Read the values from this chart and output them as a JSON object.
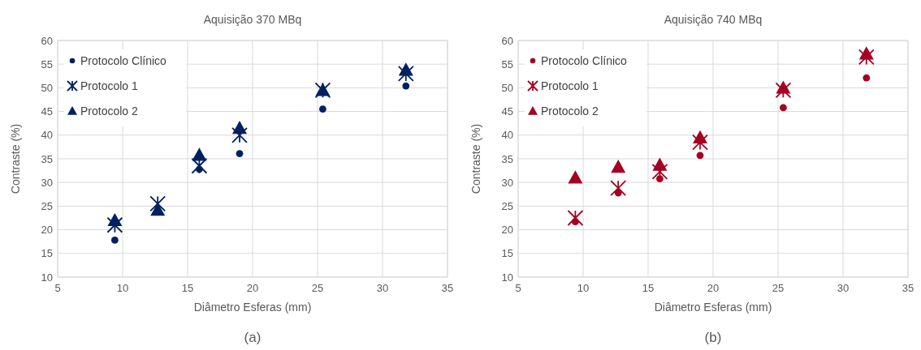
{
  "chart_data": [
    {
      "type": "scatter",
      "title": "Aquisição 370 MBq",
      "xlabel": "Diâmetro Esferas (mm)",
      "ylabel": "Contraste (%)",
      "annotations": [
        "(a)"
      ],
      "xlim": [
        5,
        35
      ],
      "xticks": [
        5,
        10,
        15,
        20,
        25,
        30,
        35
      ],
      "ylim": [
        10,
        60
      ],
      "yticks": [
        10,
        15,
        20,
        25,
        30,
        35,
        40,
        45,
        50,
        55,
        60
      ],
      "grid": true,
      "legend": "top left",
      "x": [
        9.4,
        12.7,
        15.9,
        19.0,
        25.4,
        31.8
      ],
      "series": [
        {
          "name": "Protocolo Clínico",
          "color": "#002060",
          "marker": "circle",
          "values": [
            17.8,
            null,
            32.8,
            36.1,
            45.5,
            50.4
          ]
        },
        {
          "name": "Protocolo 1",
          "color": "#002060",
          "marker": "cross",
          "values": [
            21.0,
            25.5,
            33.5,
            40.0,
            49.5,
            53.0
          ]
        },
        {
          "name": "Protocolo 2",
          "color": "#002060",
          "marker": "triangle",
          "values": [
            22.0,
            24.2,
            35.8,
            41.5,
            49.5,
            53.8
          ]
        }
      ]
    },
    {
      "type": "scatter",
      "title": "Aquisição 740 MBq",
      "xlabel": "Diâmetro Esferas (mm)",
      "ylabel": "Contraste (%)",
      "annotations": [
        "(b)"
      ],
      "xlim": [
        5,
        35
      ],
      "xticks": [
        5,
        10,
        15,
        20,
        25,
        30,
        35
      ],
      "ylim": [
        10,
        60
      ],
      "yticks": [
        10,
        15,
        20,
        25,
        30,
        35,
        40,
        45,
        50,
        55,
        60
      ],
      "grid": true,
      "legend": "top left",
      "x": [
        9.4,
        12.7,
        15.9,
        19.0,
        25.4,
        31.8
      ],
      "series": [
        {
          "name": "Protocolo Clínico",
          "color": "#a50021",
          "marker": "circle",
          "values": [
            21.7,
            27.8,
            30.8,
            35.7,
            45.8,
            52.1
          ]
        },
        {
          "name": "Protocolo 1",
          "color": "#a50021",
          "marker": "cross",
          "values": [
            22.5,
            28.8,
            32.3,
            38.5,
            49.5,
            56.5
          ]
        },
        {
          "name": "Protocolo 2",
          "color": "#a50021",
          "marker": "triangle",
          "values": [
            31.0,
            33.3,
            33.7,
            39.5,
            50.0,
            57.2
          ]
        }
      ]
    }
  ]
}
